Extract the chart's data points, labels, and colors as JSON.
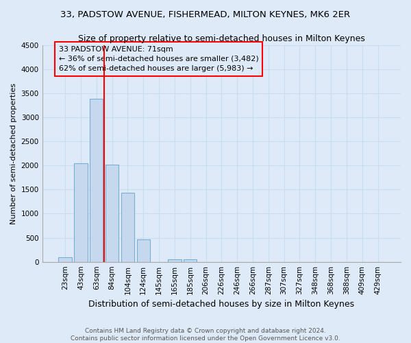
{
  "title": "33, PADSTOW AVENUE, FISHERMEAD, MILTON KEYNES, MK6 2ER",
  "subtitle": "Size of property relative to semi-detached houses in Milton Keynes",
  "xlabel": "Distribution of semi-detached houses by size in Milton Keynes",
  "ylabel": "Number of semi-detached properties",
  "categories": [
    "23sqm",
    "43sqm",
    "63sqm",
    "84sqm",
    "104sqm",
    "124sqm",
    "145sqm",
    "165sqm",
    "185sqm",
    "206sqm",
    "226sqm",
    "246sqm",
    "266sqm",
    "287sqm",
    "307sqm",
    "327sqm",
    "348sqm",
    "368sqm",
    "388sqm",
    "409sqm",
    "429sqm"
  ],
  "values": [
    100,
    2050,
    3380,
    2020,
    1440,
    460,
    0,
    50,
    50,
    0,
    0,
    0,
    0,
    0,
    0,
    0,
    0,
    0,
    0,
    0,
    0
  ],
  "bar_color": "#c5d8ee",
  "bar_edge_color": "#7aafd4",
  "grid_color": "#c8ddf0",
  "background_color": "#deeaf7",
  "annotation_box_text": "33 PADSTOW AVENUE: 71sqm\n← 36% of semi-detached houses are smaller (3,482)\n62% of semi-detached houses are larger (5,983) →",
  "red_line_x": 3,
  "ylim": [
    0,
    4500
  ],
  "yticks": [
    0,
    500,
    1000,
    1500,
    2000,
    2500,
    3000,
    3500,
    4000,
    4500
  ],
  "footer_line1": "Contains HM Land Registry data © Crown copyright and database right 2024.",
  "footer_line2": "Contains public sector information licensed under the Open Government Licence v3.0.",
  "title_fontsize": 9.5,
  "subtitle_fontsize": 9,
  "annotation_fontsize": 8,
  "axis_fontsize": 7.5,
  "xlabel_fontsize": 9,
  "ylabel_fontsize": 8,
  "footer_fontsize": 6.5
}
